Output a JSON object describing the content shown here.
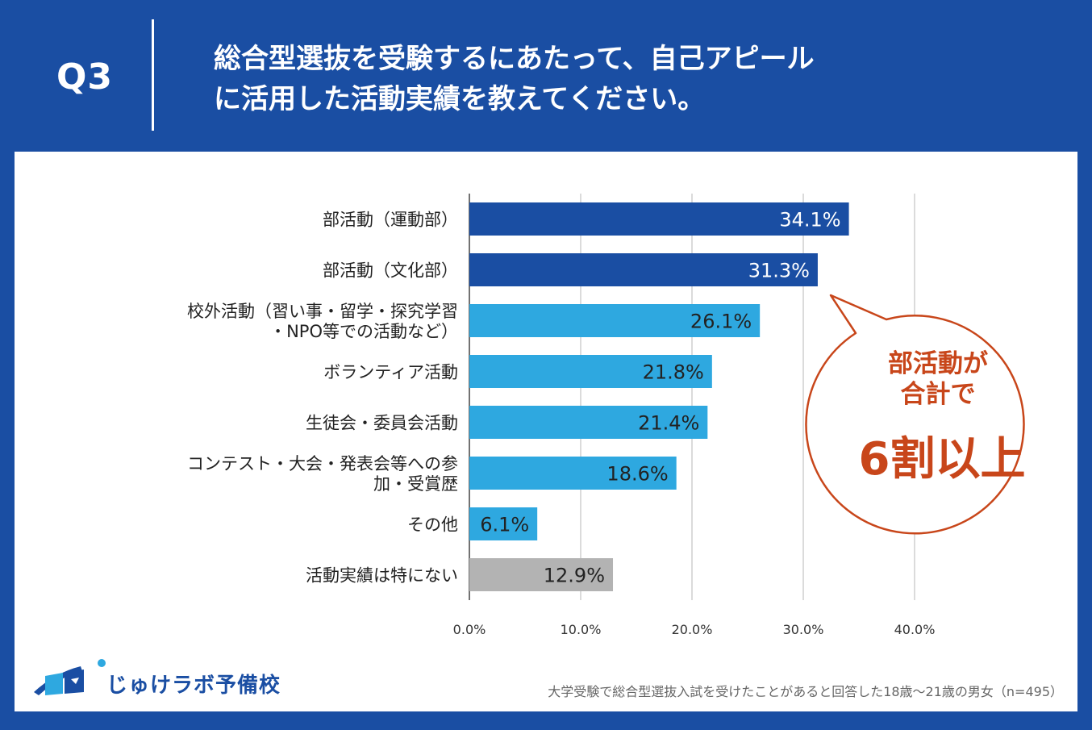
{
  "header": {
    "q_label": "Q3",
    "title_line1": "総合型選抜を受験するにあたって、自己アピール",
    "title_line2": "に活用した活動実績を教えてください。"
  },
  "chart_data": {
    "type": "bar",
    "orientation": "horizontal",
    "categories": [
      "部活動（運動部）",
      "部活動（文化部）",
      "校外活動（習い事・留学・探究学習\n・NPO等での活動など）",
      "ボランティア活動",
      "生徒会・委員会活動",
      "コンテスト・大会・発表会等への参\n加・受賞歴",
      "その他",
      "活動実績は特にない"
    ],
    "values": [
      34.1,
      31.3,
      26.1,
      21.8,
      21.4,
      18.6,
      6.1,
      12.9
    ],
    "value_labels": [
      "34.1%",
      "31.3%",
      "26.1%",
      "21.8%",
      "21.4%",
      "18.6%",
      "6.1%",
      "12.9%"
    ],
    "bar_colors": [
      "#1a4ea3",
      "#1a4ea3",
      "#2ea8e0",
      "#2ea8e0",
      "#2ea8e0",
      "#2ea8e0",
      "#2ea8e0",
      "#b3b3b3"
    ],
    "label_colors": [
      "#ffffff",
      "#ffffff",
      "#222222",
      "#222222",
      "#222222",
      "#222222",
      "#222222",
      "#222222"
    ],
    "xlim": [
      0,
      40
    ],
    "xticks": [
      0,
      10,
      20,
      30,
      40
    ],
    "xtick_labels": [
      "0.0%",
      "10.0%",
      "20.0%",
      "30.0%",
      "40.0%"
    ],
    "grid": true,
    "ylabel": "",
    "xlabel": ""
  },
  "callout": {
    "line1": "部活動が",
    "line2": "合計で",
    "line3": "6割以上",
    "color": "#c8461a"
  },
  "logo": {
    "text": "じゅけラボ予備校",
    "color": "#1a4ea3"
  },
  "footnote": "大学受験で総合型選抜入試を受けたことがあると回答した18歳～21歳の男女（n=495）"
}
